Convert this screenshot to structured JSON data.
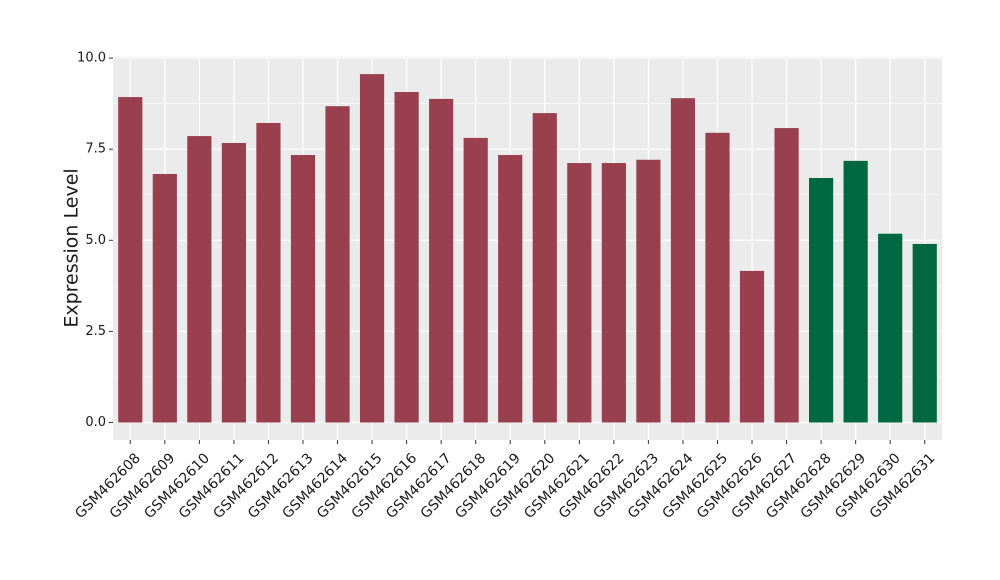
{
  "chart_data": {
    "type": "bar",
    "ylabel": "Expression Level",
    "categories": [
      "GSM462608",
      "GSM462609",
      "GSM462610",
      "GSM462611",
      "GSM462612",
      "GSM462613",
      "GSM462614",
      "GSM462615",
      "GSM462616",
      "GSM462617",
      "GSM462618",
      "GSM462619",
      "GSM462620",
      "GSM462621",
      "GSM462622",
      "GSM462623",
      "GSM462624",
      "GSM462625",
      "GSM462626",
      "GSM462627",
      "GSM462628",
      "GSM462629",
      "GSM462630",
      "GSM462631"
    ],
    "values": [
      8.93,
      6.82,
      7.86,
      7.67,
      8.22,
      7.34,
      8.68,
      9.56,
      9.07,
      8.88,
      7.81,
      7.34,
      8.49,
      7.12,
      7.12,
      7.21,
      8.9,
      7.95,
      4.16,
      8.08,
      6.71,
      7.18,
      5.18,
      4.9
    ],
    "colors": [
      "#993f4e",
      "#993f4e",
      "#993f4e",
      "#993f4e",
      "#993f4e",
      "#993f4e",
      "#993f4e",
      "#993f4e",
      "#993f4e",
      "#993f4e",
      "#993f4e",
      "#993f4e",
      "#993f4e",
      "#993f4e",
      "#993f4e",
      "#993f4e",
      "#993f4e",
      "#993f4e",
      "#993f4e",
      "#993f4e",
      "#006743",
      "#006743",
      "#006743",
      "#006743"
    ],
    "ylim": [
      -0.48,
      10.03
    ],
    "yticks": [
      {
        "value": 0,
        "label": "0.0"
      },
      2.5,
      {
        "value": 5,
        "label": "5.0"
      },
      7.5,
      {
        "value": 10,
        "label": "10.0"
      }
    ],
    "grid": true
  }
}
